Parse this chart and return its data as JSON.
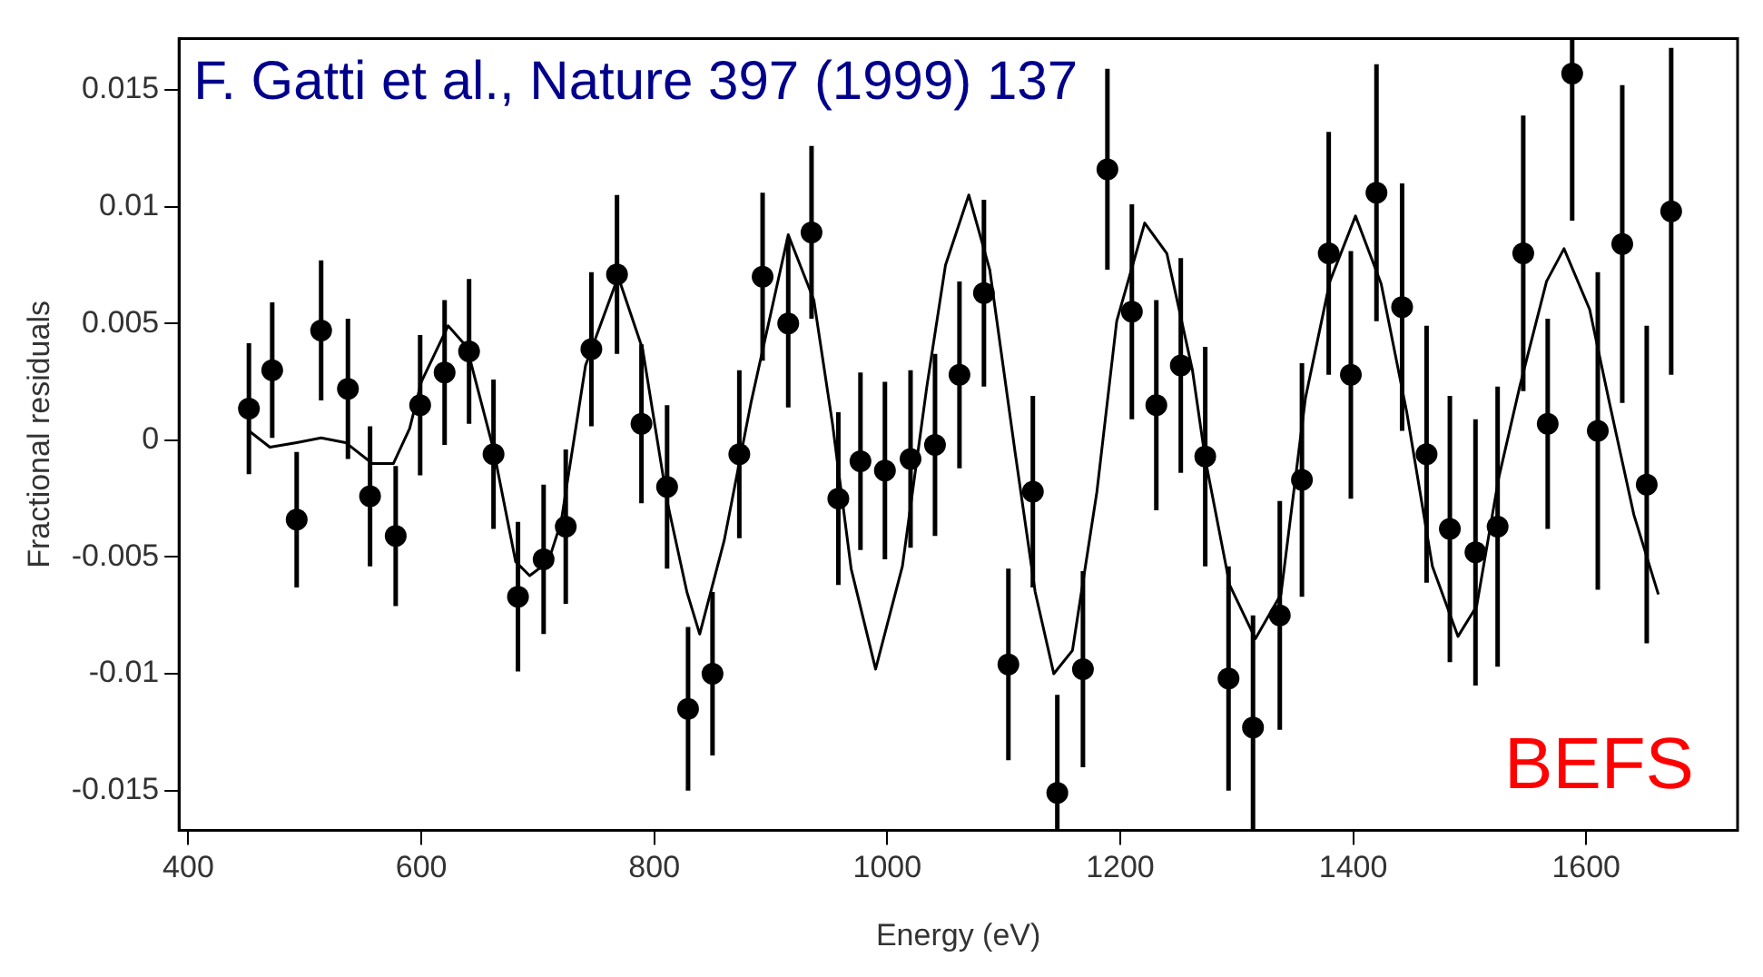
{
  "chart_data": {
    "type": "scatter",
    "xlabel": "Energy (eV)",
    "ylabel": "Fractional residuals",
    "annotations": [
      "F. Gatti et al., Nature 397 (1999) 137",
      "BEFS"
    ],
    "xlim": [
      392,
      1730
    ],
    "xticks": [
      400,
      600,
      800,
      1000,
      1200,
      1400,
      1600
    ],
    "ylim": [
      -0.0167,
      0.0172
    ],
    "yticks": [
      -0.015,
      -0.01,
      -0.005,
      0,
      0.005,
      0.01,
      0.015
    ],
    "marker": "circle",
    "grid": false,
    "series": [
      {
        "type": "scatter",
        "color": "#000000",
        "x": [
          452,
          472,
          493,
          514,
          537,
          556,
          578,
          599,
          620,
          641,
          662,
          683,
          705,
          724,
          746,
          768,
          789,
          811,
          829,
          850,
          873,
          893,
          915,
          935,
          958,
          977,
          998,
          1020,
          1041,
          1062,
          1083,
          1104,
          1125,
          1146,
          1168,
          1189,
          1210,
          1231,
          1252,
          1273,
          1293,
          1314,
          1337,
          1356,
          1379,
          1398,
          1420,
          1442,
          1463,
          1483,
          1505,
          1524,
          1546,
          1567,
          1588,
          1610,
          1631,
          1652,
          1673
        ],
        "values": [
          0.00135,
          0.003,
          -0.0034,
          0.0047,
          0.0022,
          -0.0024,
          -0.0041,
          0.0015,
          0.0029,
          0.0038,
          -0.0006,
          -0.0067,
          -0.0051,
          -0.0037,
          0.0039,
          0.0071,
          0.0007,
          -0.002,
          -0.0115,
          -0.01,
          -0.0006,
          0.007,
          0.005,
          0.0089,
          -0.0025,
          -0.0009,
          -0.0013,
          -0.0008,
          -0.0002,
          0.0028,
          0.0063,
          -0.0096,
          -0.0022,
          -0.0151,
          -0.0098,
          0.0116,
          0.0055,
          0.0015,
          0.0032,
          -0.0007,
          -0.0102,
          -0.0123,
          -0.0075,
          -0.0017,
          0.008,
          0.0028,
          0.0106,
          0.0057,
          -0.0006,
          -0.0038,
          -0.0048,
          -0.0037,
          0.008,
          0.0007,
          0.0157,
          0.0004,
          0.0084,
          -0.0019,
          0.0098
        ],
        "errors": [
          0.0028,
          0.0029,
          0.0029,
          0.003,
          0.003,
          0.003,
          0.003,
          0.003,
          0.0031,
          0.0031,
          0.0032,
          0.0032,
          0.0032,
          0.0033,
          0.0033,
          0.0034,
          0.0034,
          0.0035,
          0.0035,
          0.0035,
          0.0036,
          0.0036,
          0.0036,
          0.0037,
          0.0037,
          0.0038,
          0.0038,
          0.0038,
          0.0039,
          0.004,
          0.004,
          0.0041,
          0.0041,
          [
            -0.0167,
            -0.0109
          ],
          0.0042,
          0.0043,
          0.0046,
          0.0045,
          0.0046,
          0.0047,
          0.0048,
          [
            -0.0167,
            -0.0075
          ],
          0.0049,
          0.005,
          0.0052,
          0.0053,
          0.0055,
          0.0053,
          0.0055,
          0.0057,
          0.0057,
          0.006,
          0.0059,
          0.0045,
          [
            0.0094,
            0.0172
          ],
          0.0068,
          0.0068,
          0.0068,
          0.007
        ]
      },
      {
        "type": "line",
        "color": "#000000",
        "marker": "none",
        "x": [
          452,
          470,
          493,
          514,
          535,
          558,
          576,
          590,
          600,
          623,
          639,
          662,
          681,
          693,
          709,
          720,
          741,
          769,
          790,
          811,
          828,
          839,
          860,
          883,
          915,
          937,
          953,
          969,
          990,
          1013,
          1034,
          1050,
          1070,
          1088,
          1110,
          1127,
          1143,
          1159,
          1180,
          1197,
          1221,
          1240,
          1262,
          1273,
          1294,
          1316,
          1338,
          1359,
          1380,
          1402,
          1424,
          1446,
          1468,
          1490,
          1506,
          1525,
          1543,
          1566,
          1581,
          1603,
          1620,
          1641,
          1662
        ],
        "values": [
          0.0004,
          -0.0003,
          -0.0001,
          0.0001,
          -0.0001,
          -0.001,
          -0.001,
          0.0005,
          0.0025,
          0.0049,
          0.004,
          -0.0004,
          -0.0052,
          -0.0058,
          -0.0052,
          -0.0035,
          0.0032,
          0.007,
          0.0039,
          -0.0026,
          -0.0065,
          -0.0083,
          -0.0043,
          0.0016,
          0.0088,
          0.006,
          0.0007,
          -0.0055,
          -0.0098,
          -0.0054,
          0.0023,
          0.0075,
          0.0105,
          0.0073,
          -0.0006,
          -0.0065,
          -0.01,
          -0.009,
          -0.0022,
          0.0051,
          0.0093,
          0.008,
          0.003,
          -0.0008,
          -0.0062,
          -0.0085,
          -0.0066,
          0.0018,
          0.0068,
          0.0096,
          0.0067,
          0.0012,
          -0.0054,
          -0.0084,
          -0.0071,
          -0.0016,
          0.0023,
          0.0068,
          0.0082,
          0.0056,
          0.0016,
          -0.0032,
          -0.0066
        ]
      }
    ]
  }
}
